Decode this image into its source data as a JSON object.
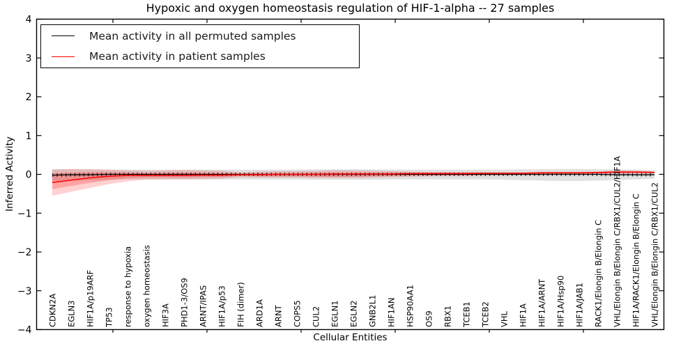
{
  "figure": {
    "title": "Hypoxic and oxygen homeostasis regulation of HIF-1-alpha -- 27 samples",
    "xlabel": "Cellular Entities",
    "ylabel": "Inferred Activity"
  },
  "legend": {
    "entries": [
      {
        "label": "Mean activity in all permuted samples",
        "color": "#000000"
      },
      {
        "label": "Mean activity in patient samples",
        "color": "#ff0000"
      }
    ]
  },
  "chart_data": {
    "type": "line",
    "title": "Hypoxic and oxygen homeostasis regulation of HIF-1-alpha -- 27 samples",
    "xlabel": "Cellular Entities",
    "ylabel": "Inferred Activity",
    "ylim": [
      -4,
      4
    ],
    "y_ticks": [
      4,
      3,
      2,
      1,
      0,
      -1,
      -2,
      -3,
      -4
    ],
    "grid": false,
    "legend_position": "upper left",
    "categories": [
      "CDKN2A",
      "EGLN3",
      "HIF1A/p19ARF",
      "TP53",
      "response to hypoxia",
      "oxygen homeostasis",
      "HIF3A",
      "PHD1-3/OS9",
      "ARNT/IPAS",
      "HIF1A/p53",
      "FIH (dimer)",
      "ARD1A",
      "ARNT",
      "COPS5",
      "CUL2",
      "EGLN1",
      "EGLN2",
      "GNB2L1",
      "HIF1AN",
      "HSP90AA1",
      "OS9",
      "RBX1",
      "TCEB1",
      "TCEB2",
      "VHL",
      "HIF1A",
      "HIF1A/ARNT",
      "HIF1A/Hsp90",
      "HIF1A/JAB1",
      "RACK1/Elongin B/Elongin C",
      "VHL/Elongin B/Elongin C/RBX1/CUL2/HIF1A",
      "HIF1A/RACK1/Elongin B/Elongin C",
      "VHL/Elongin B/Elongin C/RBX1/CUL2"
    ],
    "series": [
      {
        "name": "Mean activity in all permuted samples",
        "color": "#000000",
        "band_color": "#999999",
        "values": [
          -0.02,
          -0.01,
          -0.01,
          0,
          0,
          0,
          0,
          0,
          0,
          0,
          0,
          0,
          0,
          0,
          0,
          0,
          0,
          0,
          0,
          0,
          0,
          0,
          0,
          0,
          0,
          0,
          0,
          0,
          0,
          0,
          -0.01,
          -0.01,
          -0.01
        ],
        "band_upper": [
          0.14,
          0.13,
          0.13,
          0.12,
          0.12,
          0.12,
          0.12,
          0.12,
          0.12,
          0.12,
          0.12,
          0.12,
          0.12,
          0.12,
          0.13,
          0.13,
          0.13,
          0.13,
          0.12,
          0.12,
          0.12,
          0.12,
          0.12,
          0.12,
          0.12,
          0.13,
          0.13,
          0.14,
          0.14,
          0.13,
          0.13,
          0.12,
          0.1
        ],
        "band_lower": [
          -0.18,
          -0.16,
          -0.15,
          -0.14,
          -0.13,
          -0.13,
          -0.13,
          -0.13,
          -0.13,
          -0.13,
          -0.13,
          -0.13,
          -0.13,
          -0.13,
          -0.14,
          -0.14,
          -0.14,
          -0.14,
          -0.13,
          -0.13,
          -0.13,
          -0.13,
          -0.13,
          -0.13,
          -0.14,
          -0.15,
          -0.16,
          -0.17,
          -0.17,
          -0.16,
          -0.15,
          -0.13,
          -0.11
        ]
      },
      {
        "name": "Mean activity in patient samples",
        "color": "#ff0000",
        "band_color": "#ff0000",
        "values": [
          -0.21,
          -0.15,
          -0.09,
          -0.05,
          -0.03,
          -0.03,
          -0.03,
          -0.03,
          -0.02,
          -0.02,
          -0.01,
          -0.01,
          0,
          0,
          0,
          0.01,
          0.01,
          0.01,
          0.01,
          0.02,
          0.02,
          0.02,
          0.02,
          0.03,
          0.03,
          0.03,
          0.04,
          0.04,
          0.04,
          0.05,
          0.06,
          0.06,
          0.05
        ],
        "band_upper": [
          0.12,
          0.14,
          0.13,
          0.12,
          0.1,
          0.09,
          0.1,
          0.11,
          0.1,
          0.09,
          0.05,
          0.07,
          0.08,
          0.08,
          0.09,
          0.1,
          0.1,
          0.09,
          0.08,
          0.07,
          0.06,
          0.06,
          0.06,
          0.05,
          0.05,
          0.05,
          0.06,
          0.06,
          0.06,
          0.07,
          0.1,
          0.09,
          0.08
        ],
        "band_lower": [
          -0.55,
          -0.45,
          -0.35,
          -0.25,
          -0.18,
          -0.14,
          -0.13,
          -0.13,
          -0.12,
          -0.11,
          -0.07,
          -0.08,
          -0.08,
          -0.08,
          -0.09,
          -0.09,
          -0.09,
          -0.08,
          -0.07,
          -0.06,
          -0.05,
          -0.04,
          -0.04,
          -0.03,
          -0.03,
          -0.02,
          -0.02,
          -0.01,
          -0.01,
          0,
          0.01,
          0.02,
          0.02
        ],
        "band_inner_upper": [
          0.03,
          0.04,
          0.05,
          0.05,
          0.04,
          0.03,
          0.04,
          0.05,
          0.04,
          0.03,
          0.02,
          0.03,
          0.03,
          0.03,
          0.04,
          0.04,
          0.04,
          0.04,
          0.04,
          0.04,
          0.04,
          0.04,
          0.04,
          0.04,
          0.04,
          0.04,
          0.05,
          0.05,
          0.05,
          0.06,
          0.08,
          0.07,
          0.06
        ],
        "band_inner_lower": [
          -0.38,
          -0.3,
          -0.22,
          -0.15,
          -0.1,
          -0.08,
          -0.08,
          -0.08,
          -0.07,
          -0.07,
          -0.04,
          -0.05,
          -0.05,
          -0.05,
          -0.06,
          -0.06,
          -0.06,
          -0.05,
          -0.04,
          -0.03,
          -0.03,
          -0.02,
          -0.02,
          -0.01,
          -0.01,
          0,
          0,
          0.01,
          0.01,
          0.02,
          0.03,
          0.03,
          0.03
        ]
      }
    ]
  }
}
